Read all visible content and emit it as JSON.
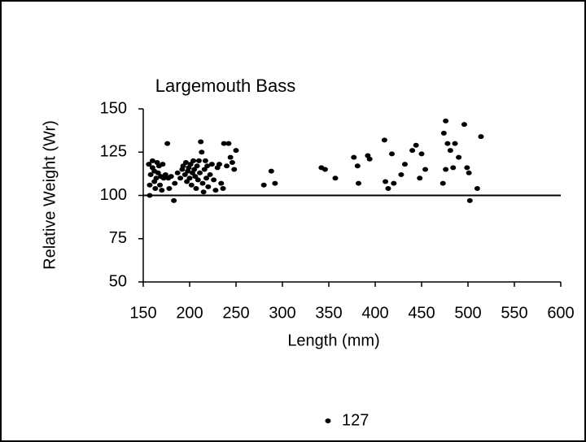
{
  "chart_data": {
    "type": "scatter",
    "title": "Largemouth Bass",
    "x_label": "Length (mm)",
    "y_label": "Relative Weight (Wr)",
    "xlim": [
      150,
      600
    ],
    "xticks": [
      150,
      200,
      250,
      300,
      350,
      400,
      450,
      500,
      550,
      600
    ],
    "ylim": [
      50,
      150
    ],
    "yticks": [
      50,
      75,
      100,
      125,
      150
    ],
    "hline": 100,
    "series": [
      {
        "name": "127",
        "color": "#000000",
        "x": [
          156,
          157,
          157,
          158,
          160,
          160,
          162,
          162,
          163,
          164,
          165,
          166,
          167,
          168,
          169,
          170,
          171,
          172,
          174,
          176,
          177,
          178,
          180,
          183,
          184,
          187,
          190,
          192,
          193,
          195,
          196,
          197,
          198,
          199,
          200,
          201,
          202,
          203,
          204,
          205,
          206,
          207,
          208,
          209,
          210,
          211,
          212,
          213,
          214,
          215,
          216,
          217,
          218,
          219,
          220,
          222,
          224,
          226,
          228,
          230,
          232,
          234,
          236,
          237,
          240,
          242,
          244,
          246,
          248,
          250,
          280,
          288,
          292,
          342,
          346,
          357,
          377,
          381,
          382,
          392,
          394,
          410,
          411,
          414,
          418,
          420,
          428,
          432,
          440,
          444,
          448,
          450,
          454,
          473,
          474,
          476,
          476,
          478,
          481,
          484,
          486,
          490,
          496,
          499,
          501,
          502,
          510,
          514
        ],
        "values": [
          118,
          106,
          100,
          112,
          120,
          116,
          114,
          108,
          104,
          110,
          119,
          113,
          117,
          106,
          111,
          103,
          118,
          110,
          112,
          130,
          110,
          104,
          111,
          97,
          107,
          113,
          110,
          115,
          117,
          112,
          119,
          108,
          114,
          116,
          110,
          118,
          106,
          113,
          120,
          115,
          111,
          104,
          117,
          109,
          120,
          113,
          131,
          125,
          107,
          102,
          115,
          120,
          110,
          117,
          105,
          112,
          118,
          109,
          103,
          116,
          118,
          107,
          104,
          130,
          117,
          130,
          122,
          119,
          115,
          126,
          106,
          114,
          107,
          116,
          115,
          110,
          122,
          117,
          107,
          123,
          121,
          132,
          108,
          104,
          124,
          107,
          112,
          118,
          126,
          129,
          110,
          124,
          115,
          107,
          136,
          143,
          115,
          130,
          126,
          116,
          130,
          122,
          141,
          116,
          113,
          97,
          104,
          134
        ]
      }
    ]
  }
}
